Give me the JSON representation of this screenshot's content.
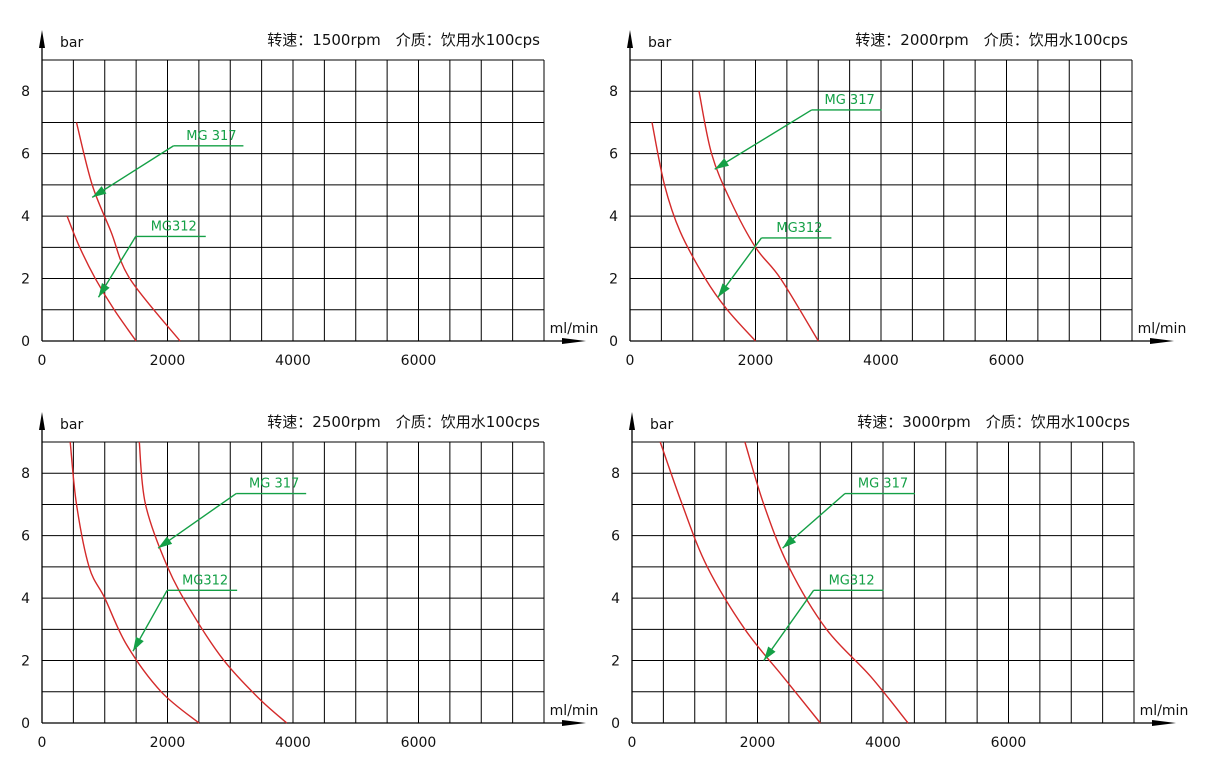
{
  "chart_data": [
    {
      "type": "line",
      "title": "转速：1500rpm　介质：饮用水100cps",
      "xlabel": "ml/min",
      "ylabel": "bar",
      "xlim": [
        0,
        8000
      ],
      "ylim": [
        0,
        9
      ],
      "x_ticks": [
        "0",
        "2000",
        "4000",
        "6000"
      ],
      "y_ticks": [
        "0",
        "2",
        "4",
        "6",
        "8"
      ],
      "grid": true,
      "series": [
        {
          "name": "MG312",
          "points": [
            [
              400,
              4
            ],
            [
              600,
              3
            ],
            [
              850,
              2
            ],
            [
              1150,
              1
            ],
            [
              1500,
              0
            ]
          ]
        },
        {
          "name": "MG 317",
          "points": [
            [
              550,
              7
            ],
            [
              800,
              5
            ],
            [
              1100,
              3.5
            ],
            [
              1400,
              2
            ],
            [
              2200,
              0
            ]
          ]
        }
      ],
      "annotations": [
        {
          "text": "MG 317",
          "x": 2700,
          "y": 6.25,
          "point": [
            800,
            4.6
          ]
        },
        {
          "text": "MG312",
          "x": 2100,
          "y": 3.35,
          "point": [
            900,
            1.4
          ]
        }
      ]
    },
    {
      "type": "line",
      "title": "转速：2000rpm　介质：饮用水100cps",
      "xlabel": "ml/min",
      "ylabel": "bar",
      "xlim": [
        0,
        8000
      ],
      "ylim": [
        0,
        9
      ],
      "x_ticks": [
        "0",
        "2000",
        "4000",
        "6000"
      ],
      "y_ticks": [
        "0",
        "2",
        "4",
        "6",
        "8"
      ],
      "grid": true,
      "series": [
        {
          "name": "MG312",
          "points": [
            [
              350,
              7
            ],
            [
              550,
              5
            ],
            [
              800,
              3.5
            ],
            [
              1200,
              2
            ],
            [
              1550,
              1
            ],
            [
              2000,
              0
            ]
          ]
        },
        {
          "name": "MG 317",
          "points": [
            [
              1100,
              8
            ],
            [
              1300,
              6
            ],
            [
              1600,
              4.5
            ],
            [
              2000,
              3
            ],
            [
              2400,
              2
            ],
            [
              3000,
              0
            ]
          ]
        }
      ],
      "annotations": [
        {
          "text": "MG 317",
          "x": 3500,
          "y": 7.4,
          "point": [
            1350,
            5.5
          ]
        },
        {
          "text": "MG312",
          "x": 2700,
          "y": 3.3,
          "point": [
            1400,
            1.4
          ]
        }
      ]
    },
    {
      "type": "line",
      "title": "转速：2500rpm　介质：饮用水100cps",
      "xlabel": "ml/min",
      "ylabel": "bar",
      "xlim": [
        0,
        8000
      ],
      "ylim": [
        0,
        9
      ],
      "x_ticks": [
        "0",
        "2000",
        "4000",
        "6000"
      ],
      "y_ticks": [
        "0",
        "2",
        "4",
        "6",
        "8"
      ],
      "grid": true,
      "series": [
        {
          "name": "MG312",
          "points": [
            [
              450,
              9
            ],
            [
              550,
              7
            ],
            [
              750,
              5
            ],
            [
              1000,
              4
            ],
            [
              1350,
              2.5
            ],
            [
              1900,
              1
            ],
            [
              2500,
              0
            ]
          ]
        },
        {
          "name": "MG 317",
          "points": [
            [
              1550,
              9
            ],
            [
              1650,
              7
            ],
            [
              2000,
              5
            ],
            [
              2400,
              3.5
            ],
            [
              2900,
              2
            ],
            [
              3450,
              0.8
            ],
            [
              3900,
              0
            ]
          ]
        }
      ],
      "annotations": [
        {
          "text": "MG 317",
          "x": 3700,
          "y": 7.35,
          "point": [
            1850,
            5.6
          ]
        },
        {
          "text": "MG312",
          "x": 2600,
          "y": 4.25,
          "point": [
            1450,
            2.3
          ]
        }
      ]
    },
    {
      "type": "line",
      "title": "转速：3000rpm　介质：饮用水100cps",
      "xlabel": "ml/min",
      "ylabel": "bar",
      "xlim": [
        0,
        8000
      ],
      "ylim": [
        0,
        9
      ],
      "x_ticks": [
        "0",
        "2000",
        "4000",
        "6000"
      ],
      "y_ticks": [
        "0",
        "2",
        "4",
        "6",
        "8"
      ],
      "grid": true,
      "series": [
        {
          "name": "MG312",
          "points": [
            [
              450,
              9
            ],
            [
              800,
              7
            ],
            [
              1200,
              5
            ],
            [
              1800,
              3
            ],
            [
              2400,
              1.5
            ],
            [
              3000,
              0
            ]
          ]
        },
        {
          "name": "MG 317",
          "points": [
            [
              1800,
              9
            ],
            [
              2100,
              7
            ],
            [
              2500,
              5
            ],
            [
              3100,
              3
            ],
            [
              3800,
              1.5
            ],
            [
              4400,
              0
            ]
          ]
        }
      ],
      "annotations": [
        {
          "text": "MG 317",
          "x": 4000,
          "y": 7.35,
          "point": [
            2400,
            5.6
          ]
        },
        {
          "text": "MG312",
          "x": 3500,
          "y": 4.25,
          "point": [
            2100,
            2
          ]
        }
      ]
    }
  ],
  "colors": {
    "curve": "#d42a2a",
    "annotation": "#14a046",
    "grid": "#000000",
    "text": "#111111"
  }
}
